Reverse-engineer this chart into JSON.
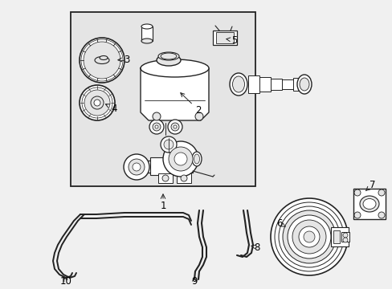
{
  "background_color": "#f0f0f0",
  "box_bg": "#e5e5e5",
  "line_color": "#222222",
  "text_color": "#000000",
  "fig_width": 4.89,
  "fig_height": 3.6,
  "dpi": 100
}
